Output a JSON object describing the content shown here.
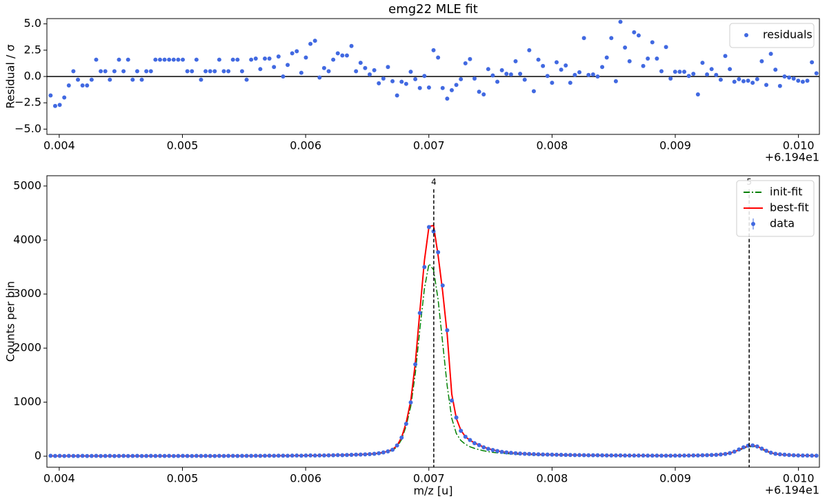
{
  "chart_data": [
    {
      "type": "scatter",
      "title": "emg22 MLE fit",
      "ylabel": "Residual / σ",
      "x_offset": "+6.194e1",
      "xlim": [
        0.0039,
        0.01017
      ],
      "xticks": [
        0.004,
        0.005,
        0.006,
        0.007,
        0.008,
        0.009,
        {
          "value": 0.01,
          "label": "0.010"
        }
      ],
      "ylim": [
        -5.5,
        5.5
      ],
      "yticks": [
        {
          "value": 5,
          "label": "5.0"
        },
        {
          "value": 2.5,
          "label": "2.5"
        },
        {
          "value": 0,
          "label": "0.0"
        },
        {
          "value": -2.5,
          "label": "−2.5"
        },
        {
          "value": -5,
          "label": "−5.0"
        }
      ],
      "zero_line": true,
      "legend": "upper right",
      "x": [
        0.00393,
        0.003967,
        0.004004,
        0.004041,
        0.004078,
        0.004115,
        0.004152,
        0.004189,
        0.004226,
        0.004263,
        0.0043,
        0.004337,
        0.004374,
        0.004411,
        0.004448,
        0.004485,
        0.004522,
        0.004559,
        0.004596,
        0.004633,
        0.00467,
        0.004707,
        0.004744,
        0.004781,
        0.004818,
        0.004855,
        0.004892,
        0.004929,
        0.004966,
        0.005003,
        0.00504,
        0.005077,
        0.005114,
        0.005151,
        0.005188,
        0.005225,
        0.005262,
        0.005299,
        0.005336,
        0.005373,
        0.00541,
        0.005447,
        0.005484,
        0.005521,
        0.005558,
        0.005595,
        0.005632,
        0.005669,
        0.005706,
        0.005743,
        0.00578,
        0.005817,
        0.005854,
        0.005891,
        0.005928,
        0.005965,
        0.006002,
        0.006039,
        0.006076,
        0.006113,
        0.00615,
        0.006187,
        0.006224,
        0.006261,
        0.006298,
        0.006335,
        0.006372,
        0.006409,
        0.006446,
        0.006483,
        0.00652,
        0.006557,
        0.006594,
        0.006631,
        0.006668,
        0.006705,
        0.006742,
        0.006779,
        0.006816,
        0.006853,
        0.00689,
        0.006927,
        0.006964,
        0.007001,
        0.007038,
        0.007075,
        0.007112,
        0.007149,
        0.007186,
        0.007223,
        0.00726,
        0.007297,
        0.007334,
        0.007371,
        0.007408,
        0.007445,
        0.007482,
        0.007519,
        0.007556,
        0.007593,
        0.00763,
        0.007667,
        0.007704,
        0.007741,
        0.007778,
        0.007815,
        0.007852,
        0.007889,
        0.007926,
        0.007963,
        0.008,
        0.008037,
        0.008074,
        0.008111,
        0.008148,
        0.008185,
        0.008222,
        0.008259,
        0.008296,
        0.008333,
        0.00837,
        0.008407,
        0.008444,
        0.008481,
        0.008518,
        0.008555,
        0.008592,
        0.008629,
        0.008666,
        0.008703,
        0.00874,
        0.008777,
        0.008814,
        0.008851,
        0.008888,
        0.008925,
        0.008962,
        0.008999,
        0.009036,
        0.009073,
        0.00911,
        0.009147,
        0.009184,
        0.009221,
        0.009258,
        0.009295,
        0.009332,
        0.009369,
        0.009406,
        0.009443,
        0.00948,
        0.009517,
        0.009554,
        0.009591,
        0.009628,
        0.009665,
        0.009702,
        0.009739,
        0.009776,
        0.009813,
        0.00985,
        0.009887,
        0.009924,
        0.009961,
        0.009998,
        0.010035,
        0.010072,
        0.010109,
        0.010146
      ],
      "series": [
        {
          "name": "residuals",
          "color": "#4169e1",
          "values": [
            -1.8,
            -2.8,
            -2.7,
            -2.0,
            -0.85,
            0.5,
            -0.3,
            -0.85,
            -0.85,
            -0.3,
            1.6,
            0.5,
            0.5,
            -0.3,
            0.5,
            1.6,
            0.5,
            1.6,
            -0.3,
            0.5,
            -0.3,
            0.5,
            0.5,
            1.6,
            1.6,
            1.6,
            1.6,
            1.6,
            1.6,
            1.6,
            0.5,
            0.5,
            1.6,
            -0.3,
            0.5,
            0.5,
            0.5,
            1.6,
            0.5,
            0.5,
            1.6,
            1.6,
            0.5,
            -0.3,
            1.6,
            1.7,
            0.7,
            1.7,
            1.7,
            0.9,
            1.9,
            0.0,
            1.1,
            2.2,
            2.4,
            0.35,
            1.8,
            3.1,
            3.4,
            -0.1,
            0.8,
            0.5,
            1.6,
            2.2,
            2.0,
            2.0,
            2.9,
            0.5,
            1.3,
            0.8,
            0.2,
            0.6,
            -0.65,
            -0.2,
            0.9,
            -0.45,
            -1.8,
            -0.5,
            -0.7,
            0.45,
            -0.25,
            -1.1,
            0.05,
            -1.05,
            2.5,
            1.8,
            -1.1,
            -2.1,
            -1.3,
            -0.8,
            -0.25,
            1.25,
            1.65,
            -0.2,
            -1.45,
            -1.7,
            0.7,
            0.1,
            -0.5,
            0.6,
            0.25,
            0.2,
            1.45,
            0.25,
            -0.3,
            2.5,
            -1.4,
            1.6,
            1.0,
            0.05,
            -0.6,
            1.35,
            0.65,
            1.05,
            -0.6,
            0.15,
            0.4,
            3.65,
            0.15,
            0.2,
            0.0,
            0.9,
            1.8,
            3.65,
            -0.45,
            5.2,
            2.75,
            1.45,
            4.2,
            3.9,
            1.0,
            1.7,
            3.25,
            1.7,
            0.5,
            2.8,
            -0.2,
            0.45,
            0.45,
            0.45,
            0.05,
            0.25,
            -1.7,
            1.3,
            0.2,
            0.7,
            0.15,
            -0.3,
            1.95,
            0.7,
            -0.5,
            -0.25,
            -0.45,
            -0.4,
            -0.6,
            -0.25,
            1.45,
            -0.8,
            2.15,
            0.65,
            -0.9,
            0.0,
            -0.1,
            -0.2,
            -0.4,
            -0.5,
            -0.4,
            1.35,
            0.3
          ]
        }
      ]
    },
    {
      "type": "line",
      "xlabel": "m/z [u]",
      "ylabel": "Counts per bin",
      "x_offset": "+6.194e1",
      "xlim": [
        0.0039,
        0.01017
      ],
      "xticks": [
        0.004,
        0.005,
        0.006,
        0.007,
        0.008,
        0.009,
        {
          "value": 0.01,
          "label": "0.010"
        }
      ],
      "ylim": [
        -204,
        5190
      ],
      "yticks": [
        0,
        1000,
        2000,
        3000,
        4000,
        5000
      ],
      "legend": "upper right",
      "markers": [
        {
          "x": 0.00704,
          "y": 4940,
          "label": "4"
        },
        {
          "x": 0.0096,
          "y": 4940,
          "label": "5"
        }
      ],
      "x": [
        0.00393,
        0.003967,
        0.004004,
        0.004041,
        0.004078,
        0.004115,
        0.004152,
        0.004189,
        0.004226,
        0.004263,
        0.0043,
        0.004337,
        0.004374,
        0.004411,
        0.004448,
        0.004485,
        0.004522,
        0.004559,
        0.004596,
        0.004633,
        0.00467,
        0.004707,
        0.004744,
        0.004781,
        0.004818,
        0.004855,
        0.004892,
        0.004929,
        0.004966,
        0.005003,
        0.00504,
        0.005077,
        0.005114,
        0.005151,
        0.005188,
        0.005225,
        0.005262,
        0.005299,
        0.005336,
        0.005373,
        0.00541,
        0.005447,
        0.005484,
        0.005521,
        0.005558,
        0.005595,
        0.005632,
        0.005669,
        0.005706,
        0.005743,
        0.00578,
        0.005817,
        0.005854,
        0.005891,
        0.005928,
        0.005965,
        0.006002,
        0.006039,
        0.006076,
        0.006113,
        0.00615,
        0.006187,
        0.006224,
        0.006261,
        0.006298,
        0.006335,
        0.006372,
        0.006409,
        0.006446,
        0.006483,
        0.00652,
        0.006557,
        0.006594,
        0.006631,
        0.006668,
        0.006705,
        0.006742,
        0.006779,
        0.006816,
        0.006853,
        0.00689,
        0.006927,
        0.006964,
        0.007001,
        0.007038,
        0.007075,
        0.007112,
        0.007149,
        0.007186,
        0.007223,
        0.00726,
        0.007297,
        0.007334,
        0.007371,
        0.007408,
        0.007445,
        0.007482,
        0.007519,
        0.007556,
        0.007593,
        0.00763,
        0.007667,
        0.007704,
        0.007741,
        0.007778,
        0.007815,
        0.007852,
        0.007889,
        0.007926,
        0.007963,
        0.008,
        0.008037,
        0.008074,
        0.008111,
        0.008148,
        0.008185,
        0.008222,
        0.008259,
        0.008296,
        0.008333,
        0.00837,
        0.008407,
        0.008444,
        0.008481,
        0.008518,
        0.008555,
        0.008592,
        0.008629,
        0.008666,
        0.008703,
        0.00874,
        0.008777,
        0.008814,
        0.008851,
        0.008888,
        0.008925,
        0.008962,
        0.008999,
        0.009036,
        0.009073,
        0.00911,
        0.009147,
        0.009184,
        0.009221,
        0.009258,
        0.009295,
        0.009332,
        0.009369,
        0.009406,
        0.009443,
        0.00948,
        0.009517,
        0.009554,
        0.009591,
        0.009628,
        0.009665,
        0.009702,
        0.009739,
        0.009776,
        0.009813,
        0.00985,
        0.009887,
        0.009924,
        0.009961,
        0.009998,
        0.010035,
        0.010072,
        0.010109,
        0.010146
      ],
      "series": [
        {
          "name": "init-fit",
          "color": "#008000",
          "style": "dashdot",
          "values": [
            4,
            4,
            4,
            4,
            4,
            4,
            4,
            4,
            4,
            4,
            4,
            4,
            4,
            4,
            4,
            4,
            4,
            4,
            4,
            4,
            4,
            4,
            4,
            4,
            4,
            4,
            4,
            4,
            4,
            4,
            4,
            4,
            4,
            4,
            4,
            4,
            4,
            5,
            5,
            5,
            5,
            5,
            5,
            5,
            6,
            6,
            6,
            6,
            7,
            7,
            7,
            8,
            8,
            9,
            9,
            10,
            10,
            11,
            12,
            13,
            13,
            14,
            16,
            17,
            19,
            20,
            22,
            25,
            28,
            31,
            35,
            41,
            50,
            62,
            80,
            108,
            170,
            310,
            560,
            920,
            1530,
            2350,
            3100,
            3560,
            3450,
            2900,
            2100,
            1300,
            700,
            420,
            290,
            220,
            175,
            145,
            120,
            100,
            85,
            72,
            62,
            55,
            48,
            43,
            39,
            35,
            32,
            30,
            28,
            26,
            24,
            23,
            22,
            21,
            20,
            19,
            18,
            17,
            16,
            16,
            15,
            15,
            14,
            14,
            13,
            13,
            12,
            12,
            12,
            11,
            11,
            11,
            11,
            10,
            10,
            10,
            10,
            10,
            10,
            10,
            11,
            11,
            12,
            13,
            14,
            16,
            18,
            21,
            25,
            31,
            40,
            54,
            76,
            108,
            145,
            172,
            180,
            165,
            128,
            90,
            60,
            40,
            29,
            22,
            18,
            15,
            13,
            12,
            11,
            10,
            9
          ]
        },
        {
          "name": "best-fit",
          "color": "#ff0000",
          "style": "solid",
          "values": [
            5,
            5,
            5,
            5,
            5,
            5,
            5,
            5,
            5,
            5,
            5,
            5,
            5,
            5,
            5,
            5,
            5,
            5,
            5,
            5,
            5,
            5,
            5,
            5,
            5,
            5,
            5,
            5,
            5,
            5,
            5,
            5,
            5,
            5,
            5,
            5,
            5,
            6,
            6,
            6,
            6,
            6,
            6,
            7,
            7,
            7,
            7,
            8,
            8,
            8,
            9,
            9,
            10,
            10,
            11,
            12,
            12,
            13,
            14,
            15,
            16,
            17,
            19,
            20,
            22,
            24,
            26,
            29,
            32,
            36,
            41,
            48,
            58,
            72,
            92,
            125,
            195,
            350,
            620,
            1020,
            1720,
            2680,
            3620,
            4250,
            4270,
            3720,
            3050,
            2250,
            1150,
            700,
            480,
            360,
            295,
            245,
            205,
            170,
            140,
            118,
            98,
            84,
            72,
            63,
            56,
            50,
            45,
            41,
            37,
            34,
            32,
            30,
            28,
            26,
            25,
            23,
            22,
            21,
            20,
            19,
            18,
            17,
            17,
            16,
            15,
            15,
            14,
            14,
            13,
            13,
            12,
            12,
            12,
            11,
            11,
            11,
            11,
            11,
            11,
            11,
            12,
            12,
            13,
            14,
            15,
            17,
            19,
            22,
            26,
            33,
            43,
            58,
            82,
            118,
            158,
            188,
            198,
            182,
            142,
            100,
            66,
            44,
            32,
            25,
            20,
            17,
            15,
            13,
            12,
            11,
            10
          ]
        },
        {
          "name": "data",
          "color": "#4169e1",
          "style": "points",
          "values": [
            8,
            5,
            6,
            4,
            7,
            5,
            3,
            6,
            4,
            5,
            6,
            4,
            5,
            7,
            3,
            5,
            6,
            4,
            5,
            6,
            4,
            5,
            6,
            5,
            7,
            5,
            6,
            4,
            5,
            6,
            5,
            4,
            6,
            5,
            6,
            5,
            4,
            6,
            5,
            7,
            6,
            5,
            7,
            6,
            6,
            8,
            7,
            8,
            9,
            8,
            9,
            10,
            8,
            11,
            12,
            10,
            13,
            14,
            12,
            15,
            14,
            16,
            18,
            20,
            19,
            22,
            25,
            28,
            30,
            33,
            38,
            45,
            55,
            70,
            90,
            120,
            200,
            345,
            600,
            995,
            1700,
            2650,
            3500,
            4240,
            4160,
            3775,
            3160,
            2330,
            1030,
            715,
            470,
            360,
            300,
            240,
            205,
            165,
            135,
            115,
            95,
            80,
            70,
            62,
            55,
            50,
            45,
            42,
            38,
            35,
            32,
            30,
            28,
            27,
            25,
            24,
            22,
            21,
            20,
            19,
            18,
            17,
            17,
            16,
            15,
            15,
            14,
            14,
            13,
            13,
            12,
            12,
            12,
            11,
            11,
            11,
            10,
            10,
            10,
            11,
            11,
            12,
            13,
            14,
            15,
            17,
            19,
            22,
            26,
            32,
            42,
            58,
            85,
            125,
            165,
            195,
            200,
            180,
            140,
            100,
            65,
            45,
            35,
            28,
            22,
            18,
            15,
            13,
            12,
            11,
            10
          ]
        }
      ]
    }
  ]
}
